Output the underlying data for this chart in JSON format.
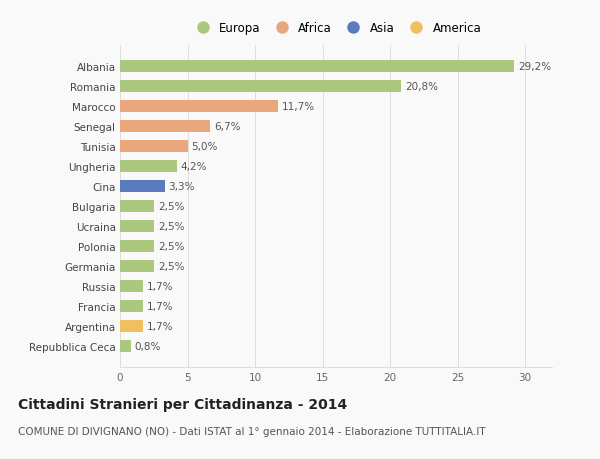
{
  "countries": [
    "Albania",
    "Romania",
    "Marocco",
    "Senegal",
    "Tunisia",
    "Ungheria",
    "Cina",
    "Bulgaria",
    "Ucraina",
    "Polonia",
    "Germania",
    "Russia",
    "Francia",
    "Argentina",
    "Repubblica Ceca"
  ],
  "values": [
    29.2,
    20.8,
    11.7,
    6.7,
    5.0,
    4.2,
    3.3,
    2.5,
    2.5,
    2.5,
    2.5,
    1.7,
    1.7,
    1.7,
    0.8
  ],
  "continents": [
    "Europa",
    "Europa",
    "Africa",
    "Africa",
    "Africa",
    "Europa",
    "Asia",
    "Europa",
    "Europa",
    "Europa",
    "Europa",
    "Europa",
    "Europa",
    "America",
    "Europa"
  ],
  "colors": {
    "Europa": "#aac97e",
    "Africa": "#e8a87c",
    "Asia": "#5b7bbf",
    "America": "#f0c060"
  },
  "legend_order": [
    "Europa",
    "Africa",
    "Asia",
    "America"
  ],
  "xlim": [
    0,
    32
  ],
  "xticks": [
    0,
    5,
    10,
    15,
    20,
    25,
    30
  ],
  "title": "Cittadini Stranieri per Cittadinanza - 2014",
  "subtitle": "COMUNE DI DIVIGNANO (NO) - Dati ISTAT al 1° gennaio 2014 - Elaborazione TUTTITALIA.IT",
  "title_fontsize": 10,
  "subtitle_fontsize": 7.5,
  "bar_height": 0.6,
  "label_fontsize": 7.5,
  "tick_fontsize": 7.5,
  "background_color": "#f9f9f9",
  "grid_color": "#dddddd"
}
